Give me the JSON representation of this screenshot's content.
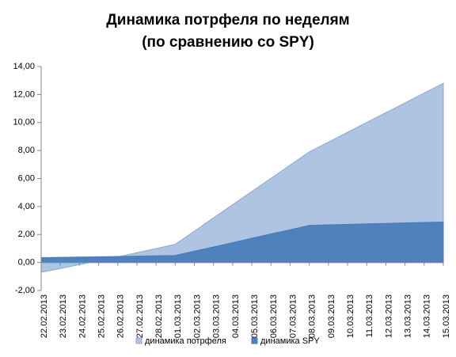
{
  "chart_data": {
    "type": "area",
    "title": [
      "Динамика потрфеля по неделям",
      "(по сравнению со SPY)"
    ],
    "categories": [
      "22.02.2013",
      "23.02.2013",
      "24.02.2013",
      "25.02.2013",
      "26.02.2013",
      "27.02.2013",
      "28.02.2013",
      "01.03.2013",
      "02.03.2013",
      "03.03.2013",
      "04.03.2013",
      "05.03.2013",
      "06.03.2013",
      "07.03.2013",
      "08.03.2013",
      "09.03.2013",
      "10.03.2013",
      "11.03.2013",
      "12.03.2013",
      "13.03.2013",
      "14.03.2013",
      "15.03.2013"
    ],
    "series": [
      {
        "name": "динамика потрфеля",
        "color": "#aec4e2",
        "line_color": "#8ea8cf",
        "values": [
          -0.7,
          -0.43,
          -0.15,
          0.13,
          0.4,
          0.7,
          1.0,
          1.3,
          2.24,
          3.19,
          4.13,
          5.07,
          6.01,
          6.96,
          7.9,
          8.6,
          9.3,
          10.0,
          10.7,
          11.4,
          12.1,
          12.8
        ]
      },
      {
        "name": "динамика SPY",
        "color": "#4f81bd",
        "line_color": "#4a7ab5",
        "values": [
          0.35,
          0.37,
          0.39,
          0.41,
          0.43,
          0.45,
          0.48,
          0.5,
          0.81,
          1.11,
          1.42,
          1.73,
          2.04,
          2.34,
          2.65,
          2.69,
          2.72,
          2.76,
          2.79,
          2.83,
          2.86,
          2.9
        ]
      }
    ],
    "ylim": [
      -2,
      14
    ],
    "yticks": [
      {
        "value": -2,
        "label": "-2,00"
      },
      {
        "value": 0,
        "label": "0,00"
      },
      {
        "value": 2,
        "label": "2,00"
      },
      {
        "value": 4,
        "label": "4,00"
      },
      {
        "value": 6,
        "label": "6,00"
      },
      {
        "value": 8,
        "label": "8,00"
      },
      {
        "value": 10,
        "label": "10,00"
      },
      {
        "value": 12,
        "label": "12,00"
      },
      {
        "value": 14,
        "label": "14,00"
      }
    ],
    "grid": false,
    "legend": "bottom"
  }
}
